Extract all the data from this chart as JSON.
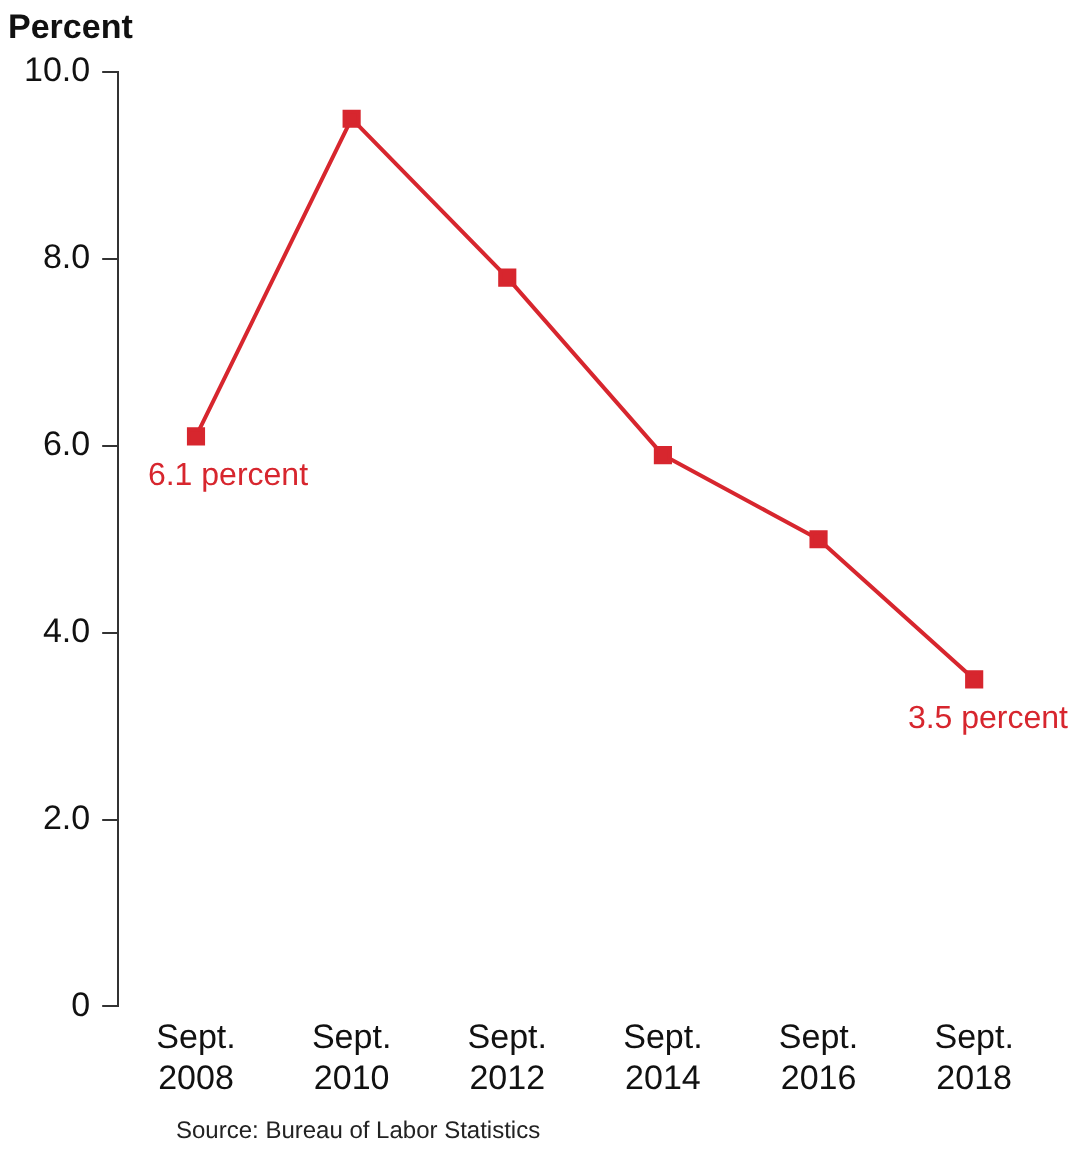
{
  "chart_data": {
    "type": "line",
    "ylabel": "Percent",
    "categories": [
      "Sept. 2008",
      "Sept. 2010",
      "Sept. 2012",
      "Sept. 2014",
      "Sept. 2016",
      "Sept. 2018"
    ],
    "series": [
      {
        "color": "#d7262e",
        "values": [
          6.1,
          9.5,
          7.8,
          5.9,
          5.0,
          3.5
        ],
        "value_labels": [
          "6.1 percent",
          null,
          null,
          null,
          null,
          "3.5 percent"
        ]
      }
    ],
    "ylim": [
      0,
      10
    ],
    "yticks": [
      {
        "value": 0,
        "label": "0"
      },
      {
        "value": 2,
        "label": "2.0"
      },
      {
        "value": 4,
        "label": "4.0"
      },
      {
        "value": 6,
        "label": "6.0"
      },
      {
        "value": 8,
        "label": "8.0"
      },
      {
        "value": 10,
        "label": "10.0"
      }
    ],
    "grid": false,
    "legend": false,
    "marker": "square",
    "line_style": "solid",
    "annotations": [
      "Source: Bureau of Labor Statistics"
    ]
  }
}
